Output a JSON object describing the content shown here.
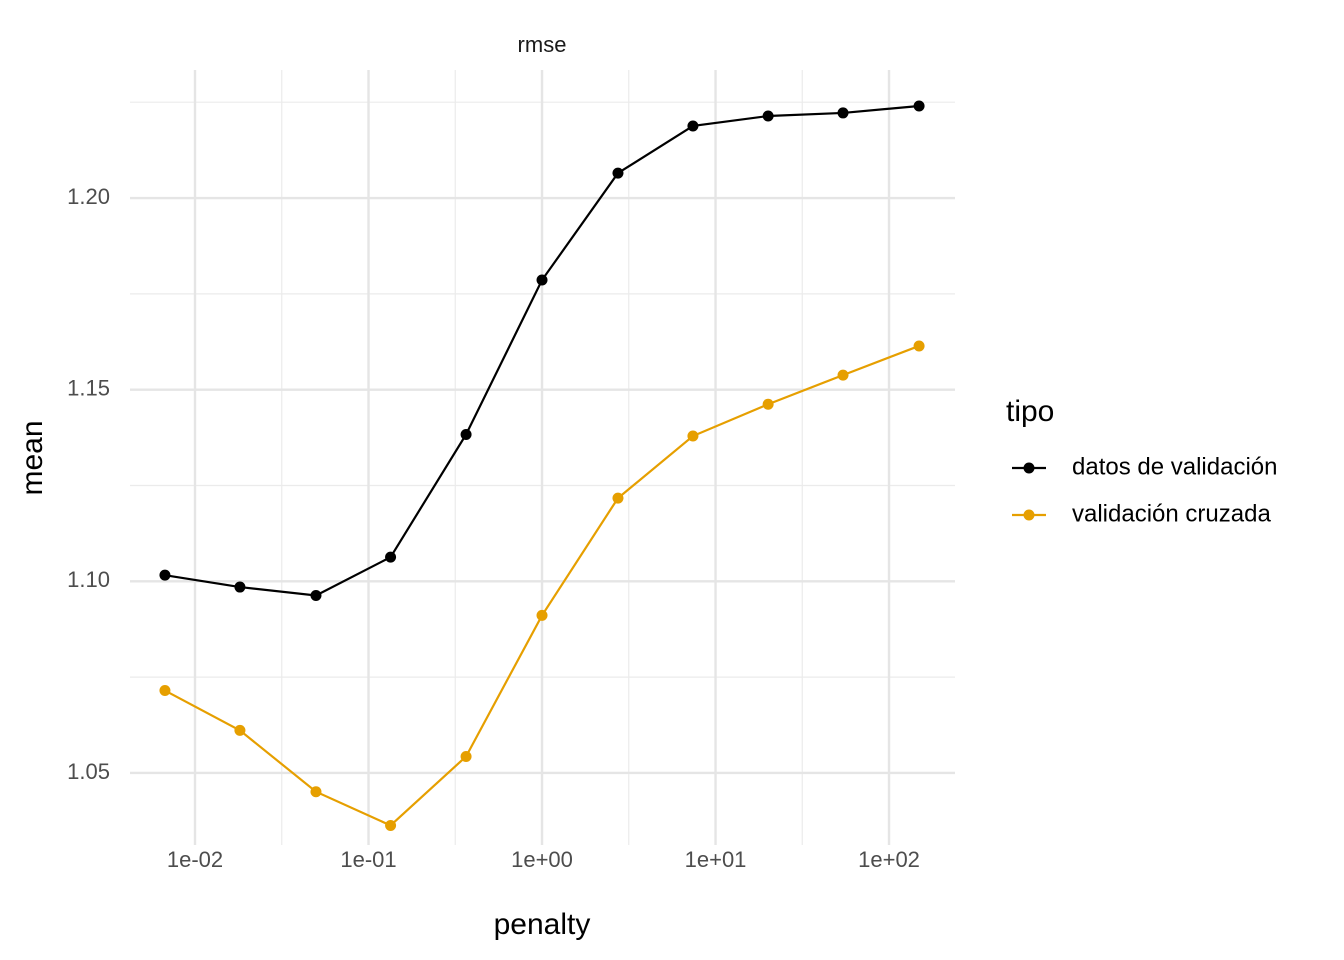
{
  "chart_data": {
    "type": "line",
    "title": "rmse",
    "x_label": "penalty",
    "y_label": "mean",
    "x": [
      0.00671,
      0.01815,
      0.0498,
      0.134,
      0.365,
      1,
      2.74,
      7.41,
      20.1,
      54.3,
      149
    ],
    "series": [
      {
        "name": "datos de validación",
        "color": "#000000",
        "values": [
          1.1016,
          1.0985,
          1.0963,
          1.1063,
          1.1383,
          1.1786,
          1.2065,
          1.2188,
          1.2214,
          1.2222,
          1.224
        ]
      },
      {
        "name": "validación cruzada",
        "color": "#e69f00",
        "values": [
          1.0715,
          1.0611,
          1.0451,
          1.0363,
          1.0543,
          1.0911,
          1.1217,
          1.1379,
          1.1462,
          1.1538,
          1.1614
        ]
      }
    ],
    "xscale": "log",
    "xlim": [
      0.00422,
      240
    ],
    "xticks": [
      {
        "value": 0.01,
        "label": "1e-02"
      },
      {
        "value": 0.1,
        "label": "1e-01"
      },
      {
        "value": 1,
        "label": "1e+00"
      },
      {
        "value": 10,
        "label": "1e+01"
      },
      {
        "value": 100,
        "label": "1e+02"
      }
    ],
    "xminor": [
      0.031623,
      0.31623,
      3.1623,
      31.623
    ],
    "ylim": [
      1.0312,
      1.2334
    ],
    "yticks": [
      1.05,
      {
        "value": 1.1,
        "label": "1.10"
      },
      1.15,
      {
        "value": 1.2,
        "label": "1.20"
      }
    ],
    "yminor": [
      1.075,
      1.125,
      1.175,
      1.225
    ],
    "grid": true,
    "legend_title": "tipo",
    "legend": "right"
  }
}
